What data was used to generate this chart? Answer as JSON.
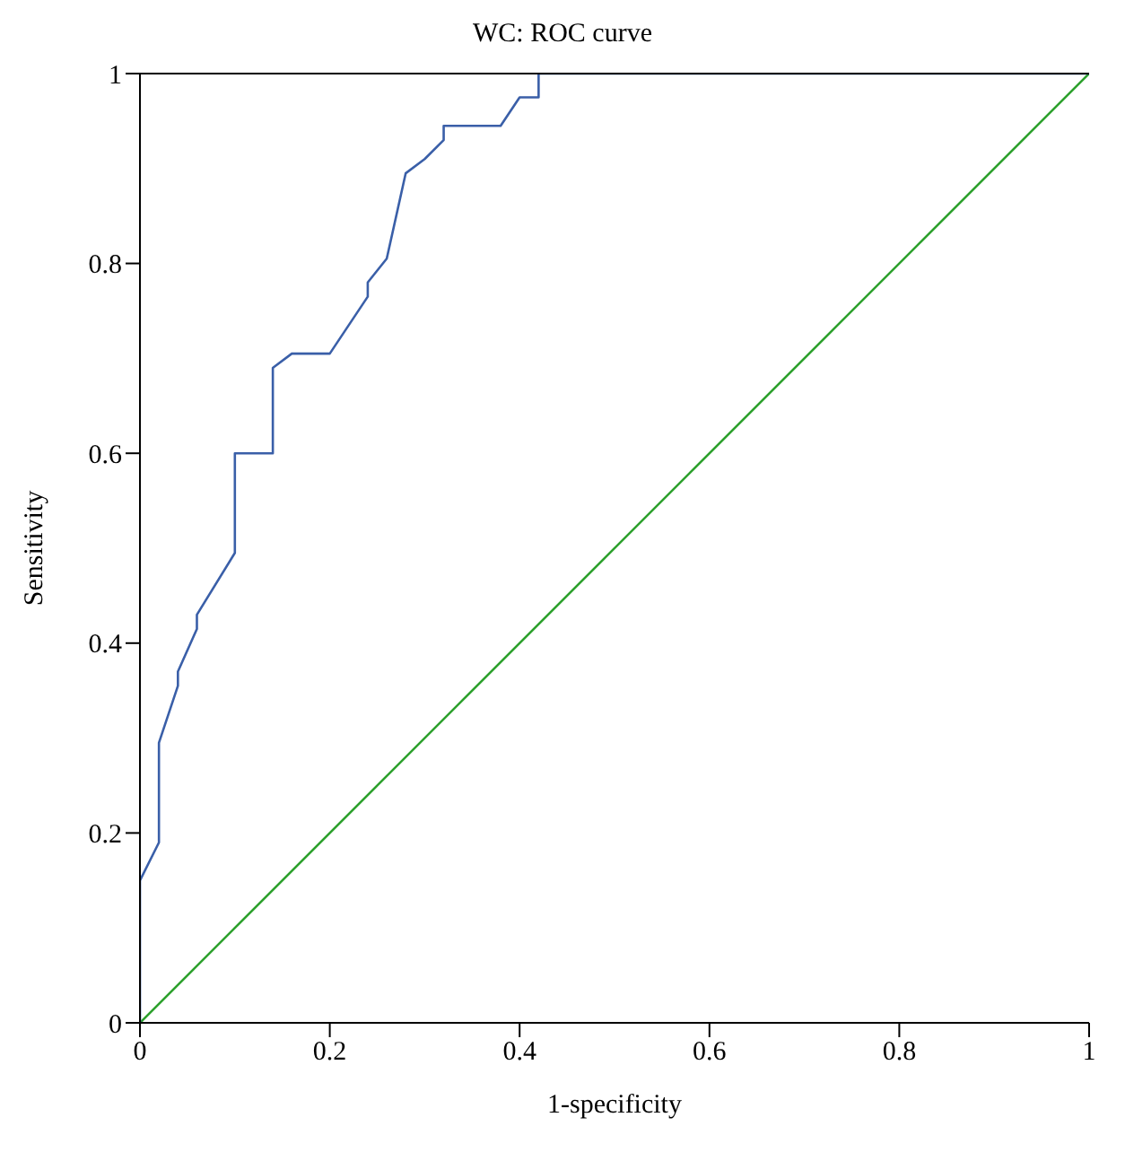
{
  "chart_data": {
    "type": "line",
    "title": "WC: ROC curve",
    "xlabel": "1-specificity",
    "ylabel": "Sensitivity",
    "xlim": [
      0,
      1
    ],
    "ylim": [
      0,
      1
    ],
    "xticks": [
      0,
      0.2,
      0.4,
      0.6,
      0.8,
      1
    ],
    "yticks": [
      0,
      0.2,
      0.4,
      0.6,
      0.8,
      1
    ],
    "grid": false,
    "legend": false,
    "marker": "none",
    "series": [
      {
        "color": "#3a5fa8",
        "x": [
          0,
          0,
          0.02,
          0.02,
          0.04,
          0.04,
          0.06,
          0.06,
          0.1,
          0.1,
          0.14,
          0.14,
          0.16,
          0.2,
          0.24,
          0.24,
          0.26,
          0.28,
          0.3,
          0.32,
          0.32,
          0.38,
          0.4,
          0.42,
          0.42,
          1
        ],
        "values": [
          0,
          0.15,
          0.19,
          0.295,
          0.355,
          0.37,
          0.415,
          0.43,
          0.495,
          0.6,
          0.6,
          0.69,
          0.705,
          0.705,
          0.765,
          0.78,
          0.805,
          0.895,
          0.91,
          0.93,
          0.945,
          0.945,
          0.975,
          0.975,
          1,
          1
        ]
      },
      {
        "color": "#2ca02c",
        "x": [
          0,
          1
        ],
        "values": [
          0,
          1
        ]
      }
    ]
  }
}
